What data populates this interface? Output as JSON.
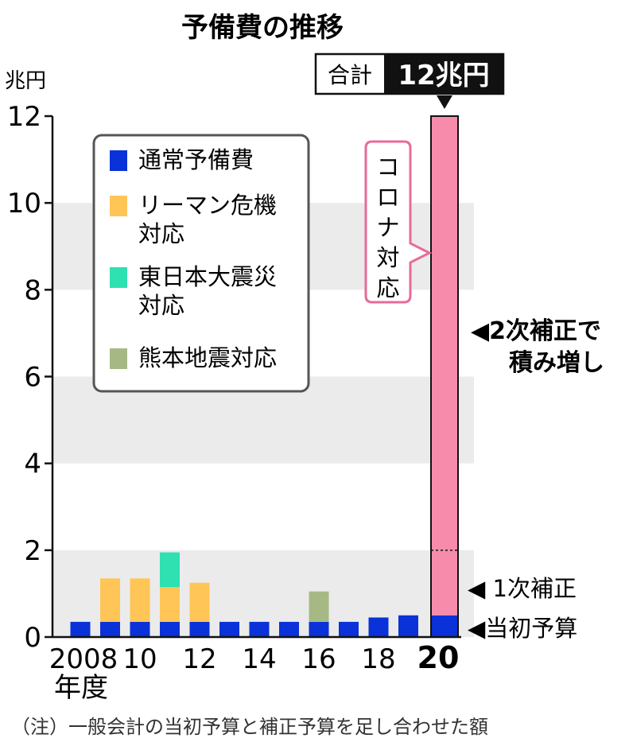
{
  "chart_data": {
    "type": "bar",
    "stacked": true,
    "title": "予備費の推移",
    "ylabel": "兆円",
    "xlabel": "年度",
    "ylim": [
      0,
      12
    ],
    "yticks": [
      "0",
      "2",
      "4",
      "6",
      "8",
      "10",
      "12"
    ],
    "x": [
      2008,
      2009,
      2010,
      2011,
      2012,
      2013,
      2014,
      2015,
      2016,
      2017,
      2018,
      2019,
      2020
    ],
    "xtick_labels": [
      {
        "x": 2008,
        "label": "2008"
      },
      {
        "x": 2010,
        "label": "10"
      },
      {
        "x": 2012,
        "label": "12"
      },
      {
        "x": 2014,
        "label": "14"
      },
      {
        "x": 2016,
        "label": "16"
      },
      {
        "x": 2018,
        "label": "18"
      },
      {
        "x": 2020,
        "label": "20"
      }
    ],
    "series": [
      {
        "name": "通常予備費",
        "color": "#0a32d8",
        "values": [
          0.35,
          0.35,
          0.35,
          0.35,
          0.35,
          0.35,
          0.35,
          0.35,
          0.35,
          0.35,
          0.45,
          0.5,
          0.5
        ]
      },
      {
        "name": "リーマン危機対応",
        "color": "#ffc556",
        "values": [
          0,
          1.0,
          1.0,
          0.8,
          0.9,
          0,
          0,
          0,
          0,
          0,
          0,
          0,
          0
        ]
      },
      {
        "name": "東日本大震災対応",
        "color": "#2fe0b0",
        "values": [
          0,
          0,
          0,
          0.8,
          0,
          0,
          0,
          0,
          0,
          0,
          0,
          0,
          0
        ]
      },
      {
        "name": "熊本地震対応",
        "color": "#a6b985",
        "values": [
          0,
          0,
          0,
          0,
          0,
          0,
          0,
          0,
          0.7,
          0,
          0,
          0,
          0
        ]
      },
      {
        "name": "コロナ対応",
        "color": "#f68bab",
        "values": [
          0,
          0,
          0,
          0,
          0,
          0,
          0,
          0,
          0,
          0,
          0,
          0,
          11.5
        ]
      }
    ],
    "segment_divider_2020": 2.0,
    "total": {
      "label": "合計",
      "value": "12兆円"
    },
    "annotations": {
      "corona": "コロナ対応",
      "hosei2": "◀2次補正で",
      "hosei2_line2": "積み増し",
      "hosei1": "◀ 1次補正",
      "toshyo": "◀当初予算"
    },
    "legend": [
      {
        "label": "通常予備費",
        "color": "#0a32d8"
      },
      {
        "label": "リーマン危機",
        "label2": "対応",
        "color": "#ffc556"
      },
      {
        "label": "東日本大震災",
        "label2": "対応",
        "color": "#2fe0b0"
      },
      {
        "label": "熊本地震対応",
        "color": "#a6b985"
      }
    ],
    "note": "（注）一般会計の当初予算と補正予算を足し合わせた額",
    "grid_bands": true
  }
}
